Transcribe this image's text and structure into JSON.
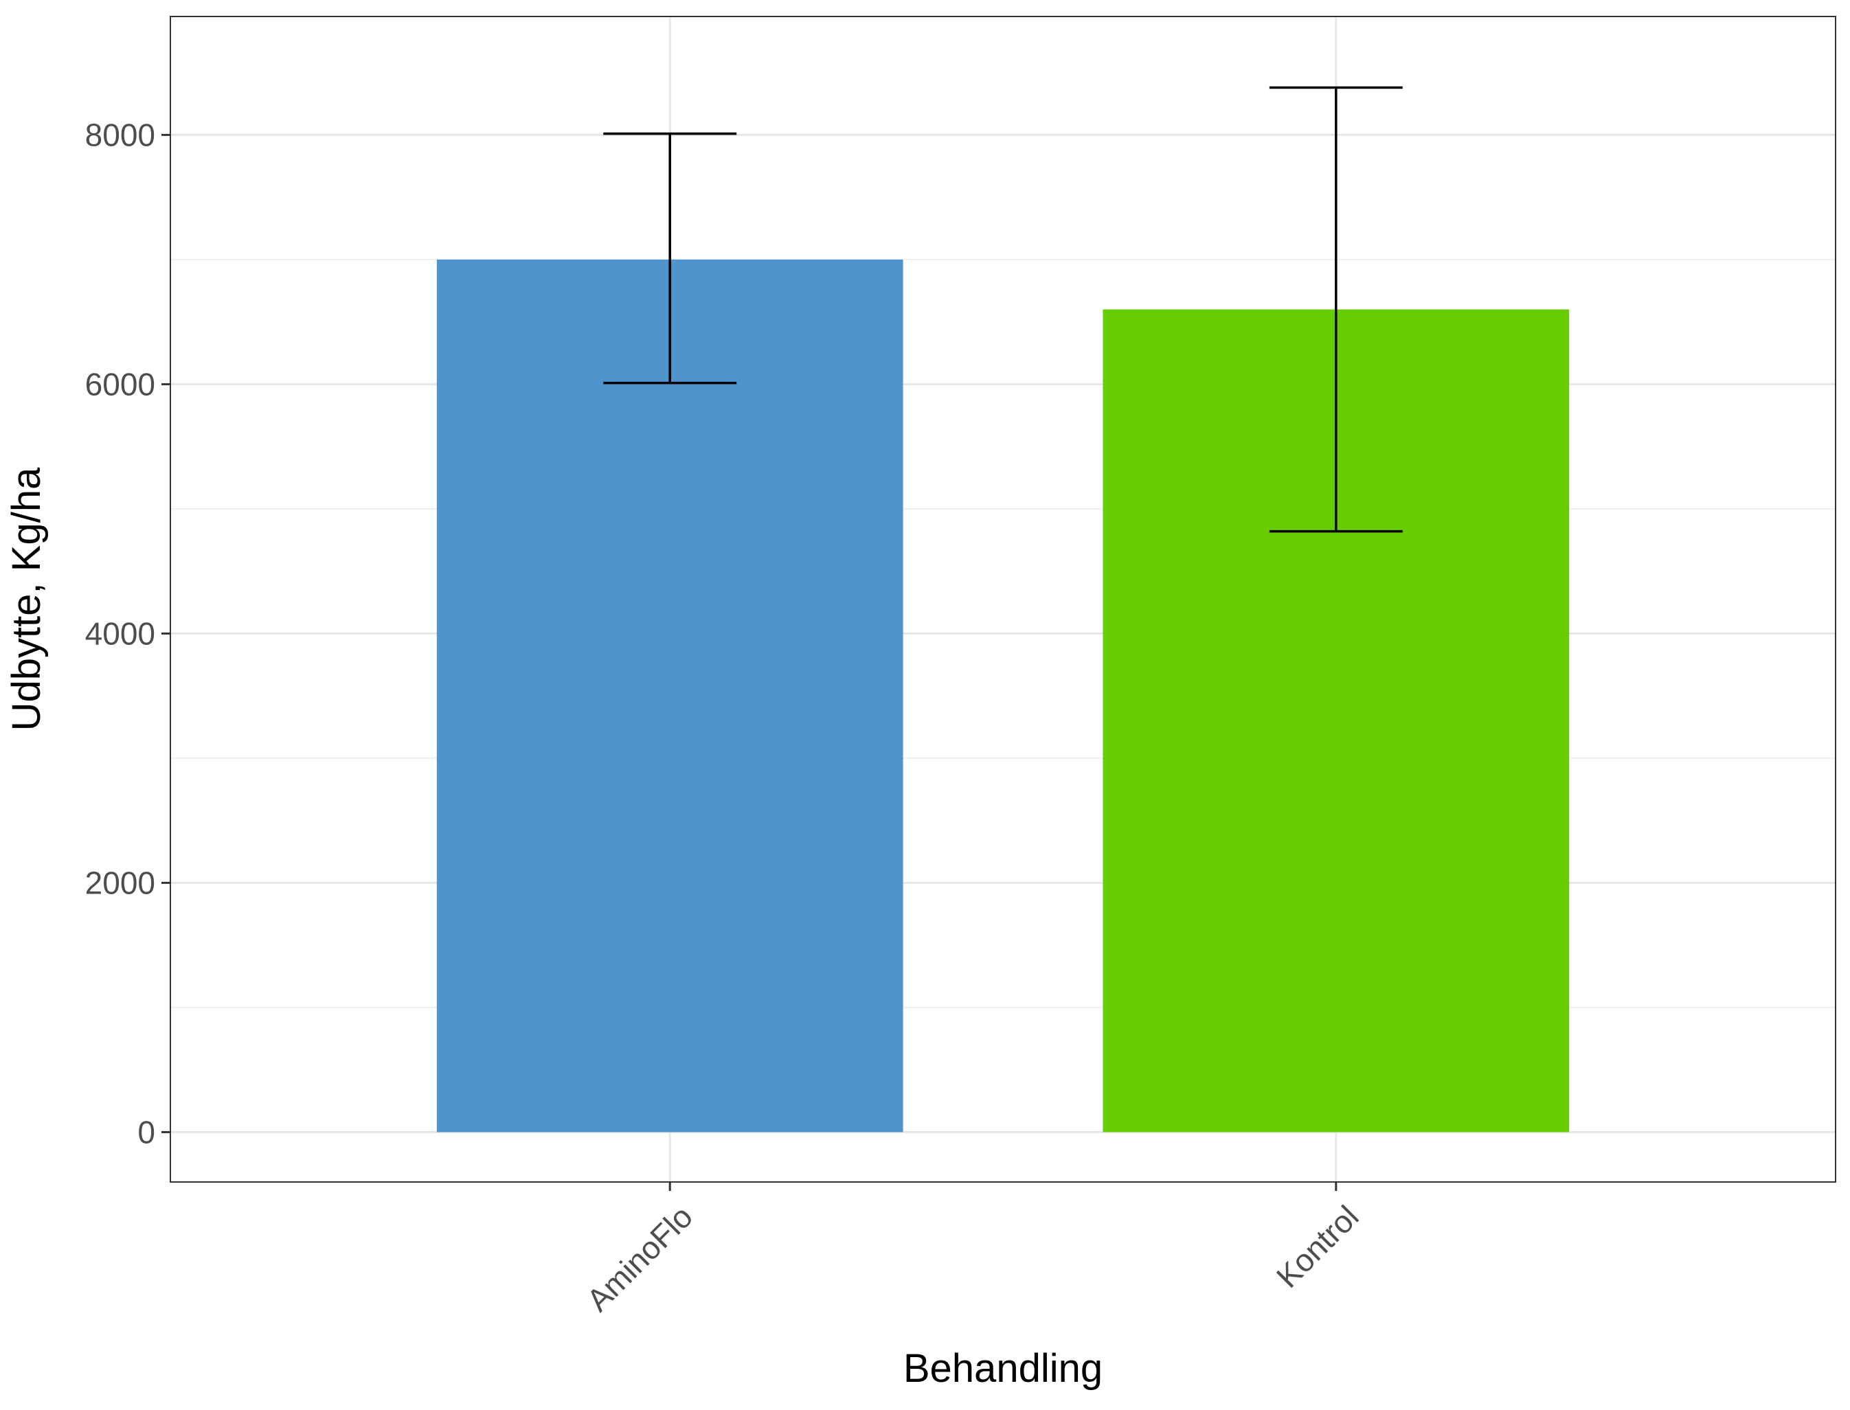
{
  "chart_data": {
    "type": "bar",
    "title": "",
    "xlabel": "Behandling",
    "ylabel": "Udbytte, Kg/ha",
    "categories": [
      "AminoFlo",
      "Kontrol"
    ],
    "values": [
      7000,
      6600
    ],
    "error_bars": [
      {
        "low": 6010,
        "high": 8010
      },
      {
        "low": 4820,
        "high": 8380
      }
    ],
    "bar_colors": [
      "#4F94CD",
      "#66CD00"
    ],
    "ylim": [
      -400,
      8950
    ],
    "yticks": [
      0,
      2000,
      4000,
      6000,
      8000
    ],
    "grid": true
  }
}
